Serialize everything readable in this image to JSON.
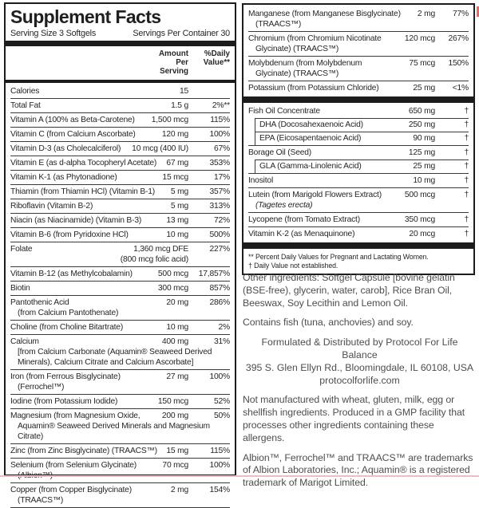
{
  "left_table": {
    "title": "Supplement Facts",
    "serving_size": "Serving Size 3 Softgels",
    "servings_per_container": "Servings Per Container 30",
    "amount_header": "Amount Per Serving",
    "dv_header": "%Daily Value**",
    "rows": [
      {
        "name": "Calories",
        "amount": "15",
        "dv": ""
      },
      {
        "name": "Total Fat",
        "amount": "1.5 g",
        "dv": "2%**"
      },
      {
        "name": "Vitamin A (100% as Beta-Carotene)",
        "amount": "1,500 mcg",
        "dv": "115%"
      },
      {
        "name": "Vitamin C (from Calcium Ascorbate)",
        "amount": "120 mg",
        "dv": "100%"
      },
      {
        "name": "Vitamin D-3 (as Cholecalciferol)",
        "amount": "10 mcg (400 IU)",
        "dv": "67%"
      },
      {
        "name": "Vitamin E (as d-alpha Tocopheryl Acetate)",
        "amount": "67 mg",
        "dv": "353%"
      },
      {
        "name": "Vitamin K-1 (as Phytonadione)",
        "amount": "15 mcg",
        "dv": "17%"
      },
      {
        "name": "Thiamin (from Thiamin HCl) (Vitamin B-1)",
        "amount": "5 mg",
        "dv": "357%"
      },
      {
        "name": "Riboflavin (Vitamin B-2)",
        "amount": "5 mg",
        "dv": "313%"
      },
      {
        "name": "Niacin (as Niacinamide) (Vitamin B-3)",
        "amount": "13 mg",
        "dv": "72%"
      },
      {
        "name": "Vitamin B-6 (from Pyridoxine HCl)",
        "amount": "10 mg",
        "dv": "500%"
      },
      {
        "name": "Folate",
        "amount": "1,360 mcg DFE",
        "amount_sub": "(800 mcg folic acid)",
        "dv": "227%"
      },
      {
        "name": "Vitamin B-12 (as Methylcobalamin)",
        "amount": "500 mcg",
        "dv": "17,857%"
      },
      {
        "name": "Biotin",
        "amount": "300 mcg",
        "dv": "857%"
      },
      {
        "name": "Pantothenic Acid",
        "amount": "20 mg",
        "dv": "286%",
        "subs": [
          "(from Calcium Pantothenate)"
        ]
      },
      {
        "name": "Choline (from Choline Bitartrate)",
        "amount": "10 mg",
        "dv": "2%"
      },
      {
        "name": "Calcium",
        "amount": "400 mg",
        "dv": "31%",
        "subs": [
          "[from Calcium Carbonate (Aquamin® Seaweed Derived Minerals), Calcium Citrate and Calcium Ascorbate]"
        ]
      },
      {
        "name": "Iron (from Ferrous Bisglycinate)",
        "amount": "27 mg",
        "dv": "100%",
        "subs": [
          "(Ferrochel™)"
        ]
      },
      {
        "name": "Iodine (from Potassium Iodide)",
        "amount": "150 mcg",
        "dv": "52%"
      },
      {
        "name": "Magnesium (from Magnesium Oxide,",
        "amount": "200 mg",
        "dv": "50%",
        "subs": [
          "Aquamin® Seaweed Derived Minerals and Magnesium Citrate)"
        ]
      },
      {
        "name": "Zinc (from Zinc Bisglycinate) (TRAACS™)",
        "amount": "15 mg",
        "dv": "115%"
      },
      {
        "name": "Selenium (from Selenium Glycinate)",
        "amount": "70 mcg",
        "dv": "100%",
        "subs": [
          "(Albion™)"
        ]
      },
      {
        "name": "Copper (from Copper Bisglycinate)",
        "amount": "2 mg",
        "dv": "154%",
        "subs": [
          "(TRAACS™)"
        ]
      }
    ]
  },
  "right_table": {
    "rows": [
      {
        "name": "Manganese (from Manganese Bisglycinate)",
        "amount": "2 mg",
        "dv": "77%",
        "subs": [
          "(TRAACS™)"
        ]
      },
      {
        "name": "Chromium (from Chromium Nicotinate",
        "amount": "120 mcg",
        "dv": "267%",
        "subs": [
          "Glycinate) (TRAACS™)"
        ]
      },
      {
        "name": "Molybdenum (from Molybdenum",
        "amount": "75 mcg",
        "dv": "150%",
        "subs": [
          "Glycinate) (TRAACS™)"
        ]
      },
      {
        "name": "Potassium (from Potassium Chloride)",
        "amount": "25 mg",
        "dv": "<1%"
      },
      {
        "bar": true
      },
      {
        "name": "Fish Oil Concentrate",
        "amount": "650 mg",
        "dv": "†"
      },
      {
        "name": "DHA (Docosahexaenoic Acid)",
        "amount": "250 mg",
        "dv": "†",
        "indent": true
      },
      {
        "name": "EPA (Eicosapentaenoic Acid)",
        "amount": "90 mg",
        "dv": "†",
        "indent": true
      },
      {
        "name": "Borage Oil (Seed)",
        "amount": "125 mg",
        "dv": "†"
      },
      {
        "name": "GLA (Gamma-Linolenic Acid)",
        "amount": "25 mg",
        "dv": "†",
        "indent": true
      },
      {
        "name": "Inositol",
        "amount": "10 mg",
        "dv": "†"
      },
      {
        "name": "Lutein (from Marigold Flowers Extract)",
        "amount": "500 mcg",
        "dv": "†",
        "subs": [
          "(Tagetes erecta)"
        ],
        "sub_italic": true
      },
      {
        "name": "Lycopene (from Tomato Extract)",
        "amount": "350 mcg",
        "dv": "†"
      },
      {
        "name": "Vitamin K-2 (as Menaquinone)",
        "amount": "20 mcg",
        "dv": "†"
      },
      {
        "bar": true
      }
    ],
    "footnotes": [
      "** Percent Daily Values for Pregnant and Lactating Women.",
      "† Daily Value not established."
    ]
  },
  "info": {
    "other_ingredients": "Other ingredients: Softgel Capsule [bovine gelatin (BSE-free), glycerin, water, carob], Rice Bran Oil, Beeswax, Soy Lecithin and Lemon Oil.",
    "contains": "Contains fish (tuna, anchovies) and soy.",
    "distributor_line1": "Formulated & Distributed by Protocol For Life Balance",
    "distributor_line2": "395 S. Glen Ellyn Rd., Bloomingdale, IL 60108, USA",
    "distributor_line3": "protocolforlife.com",
    "allergen": "Not manufactured with wheat, gluten, milk, egg or shellfish ingredients. Produced in a GMP facility that processes other ingredients containing these allergens.",
    "trademarks": "Albion™, Ferrochel™ and TRAACS™ are trademarks of Albion Laboratories, Inc.; Aquamin® is a registered trademark of Marigot Limited."
  },
  "colors": {
    "border": "#1c1c1c",
    "table_text": "#262626",
    "body_text": "#4e4e4e",
    "divider": "#3a3a3a",
    "bar": "#1c1c1c",
    "edge_pink": "#f1bcc1",
    "corner_red": "#e96a6a"
  }
}
